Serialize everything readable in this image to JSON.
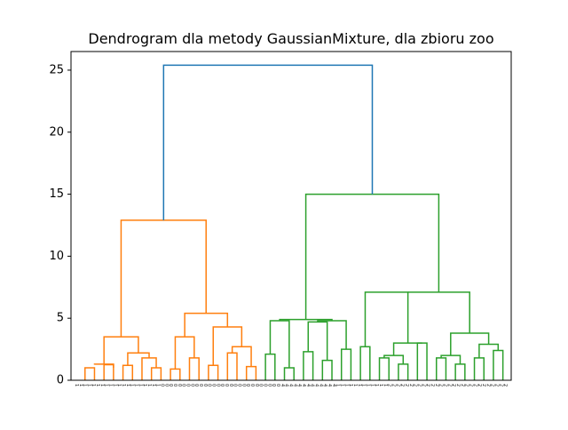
{
  "chart_data": {
    "type": "dendrogram",
    "title": "Dendrogram dla metody GaussianMixture, dla zbioru zoo",
    "xlabel": "",
    "ylabel": "",
    "ylim": [
      0,
      26.5
    ],
    "yticks": [
      0,
      5,
      10,
      15,
      20,
      25
    ],
    "grid": false,
    "leaf_count": 101,
    "leaf_labels": [
      "1",
      "1",
      "1",
      "1",
      "1",
      "1",
      "1",
      "1",
      "1",
      "1",
      "1",
      "1",
      "1",
      "1",
      "1",
      "1",
      "1",
      "1",
      "1",
      "1",
      "0",
      "0",
      "0",
      "0",
      "0",
      "0",
      "0",
      "0",
      "0",
      "0",
      "0",
      "0",
      "0",
      "0",
      "0",
      "0",
      "0",
      "0",
      "0",
      "0",
      "0",
      "0",
      "0",
      "0",
      "0",
      "0",
      "0",
      "0",
      "4",
      "4",
      "4",
      "4",
      "4",
      "4",
      "4",
      "4",
      "4",
      "4",
      "4",
      "4",
      "4",
      "1",
      "1",
      "1",
      "1",
      "1",
      "1",
      "1",
      "1",
      "1",
      "1",
      "1",
      "1",
      "2",
      "2",
      "2",
      "2",
      "2",
      "2",
      "2",
      "2",
      "2",
      "2",
      "2",
      "2",
      "2",
      "2",
      "2",
      "2",
      "2",
      "2",
      "2",
      "2",
      "2",
      "2",
      "2",
      "2",
      "2",
      "2",
      "2",
      "2"
    ],
    "colors": {
      "root": "#1f77b4",
      "cluster_1": "#ff7f0e",
      "cluster_2": "#2ca02c"
    },
    "merges": [
      {
        "x": [
          5.5,
          5.5,
          10.5,
          10.5
        ],
        "y": [
          0,
          1.0,
          1.0,
          0
        ],
        "color": "#ff7f0e"
      },
      {
        "x": [
          15.5,
          15.5,
          20.5,
          20.5
        ],
        "y": [
          0,
          1.25,
          1.25,
          0
        ],
        "color": "#ff7f0e"
      },
      {
        "x": [
          10.5,
          10.5,
          20.5,
          20.5
        ],
        "y": [
          1.25,
          1.3,
          1.3,
          1.0
        ],
        "color": "#ff7f0e"
      },
      {
        "x": [
          25.5,
          25.5,
          30.5,
          30.5
        ],
        "y": [
          0,
          1.2,
          1.2,
          0
        ],
        "color": "#ff7f0e"
      },
      {
        "x": [
          40.5,
          40.5,
          45.5,
          45.5
        ],
        "y": [
          0,
          1.0,
          1.0,
          0
        ],
        "color": "#ff7f0e"
      },
      {
        "x": [
          35.5,
          35.5,
          43.0,
          43.0
        ],
        "y": [
          0,
          1.8,
          1.8,
          1.0
        ],
        "color": "#ff7f0e"
      },
      {
        "x": [
          28.0,
          28.0,
          39.25,
          39.25
        ],
        "y": [
          1.2,
          2.2,
          2.2,
          1.8
        ],
        "color": "#ff7f0e"
      },
      {
        "x": [
          15.5,
          15.5,
          33.6,
          33.6
        ],
        "y": [
          1.3,
          3.5,
          3.5,
          2.2
        ],
        "color": "#ff7f0e"
      },
      {
        "x": [
          50.5,
          50.5,
          55.5,
          55.5
        ],
        "y": [
          0,
          0.9,
          0.9,
          0
        ],
        "color": "#ff7f0e"
      },
      {
        "x": [
          60.5,
          60.5,
          65.5,
          65.5
        ],
        "y": [
          0,
          1.8,
          1.8,
          0
        ],
        "color": "#ff7f0e"
      },
      {
        "x": [
          53.0,
          53.0,
          63.0,
          63.0
        ],
        "y": [
          0.9,
          3.5,
          3.5,
          1.8
        ],
        "color": "#ff7f0e"
      },
      {
        "x": [
          70.5,
          70.5,
          75.5,
          75.5
        ],
        "y": [
          0,
          1.2,
          1.2,
          0
        ],
        "color": "#ff7f0e"
      },
      {
        "x": [
          80.5,
          80.5,
          85.5,
          85.5
        ],
        "y": [
          0,
          2.2,
          2.2,
          0
        ],
        "color": "#ff7f0e"
      },
      {
        "x": [
          90.5,
          90.5,
          95.5,
          95.5
        ],
        "y": [
          0,
          1.1,
          1.1,
          0
        ],
        "color": "#ff7f0e"
      },
      {
        "x": [
          83.0,
          83.0,
          93.0,
          93.0
        ],
        "y": [
          2.2,
          2.7,
          2.7,
          1.1
        ],
        "color": "#ff7f0e"
      },
      {
        "x": [
          73.0,
          73.0,
          88.0,
          88.0
        ],
        "y": [
          1.2,
          4.3,
          4.3,
          2.7
        ],
        "color": "#ff7f0e"
      },
      {
        "x": [
          58.0,
          58.0,
          80.5,
          80.5
        ],
        "y": [
          3.5,
          5.4,
          5.4,
          4.3
        ],
        "color": "#ff7f0e"
      },
      {
        "x": [
          24.5,
          24.5,
          69.25,
          69.25
        ],
        "y": [
          3.5,
          12.9,
          12.9,
          5.4
        ],
        "color": "#ff7f0e"
      },
      {
        "x": [
          100.5,
          100.5,
          105.5,
          105.5
        ],
        "y": [
          0,
          2.1,
          2.1,
          0
        ],
        "color": "#2ca02c"
      },
      {
        "x": [
          110.5,
          110.5,
          115.5,
          115.5
        ],
        "y": [
          0,
          1.0,
          1.0,
          0
        ],
        "color": "#2ca02c"
      },
      {
        "x": [
          103.0,
          103.0,
          113.0,
          113.0
        ],
        "y": [
          2.1,
          4.8,
          4.8,
          1.0
        ],
        "color": "#2ca02c"
      },
      {
        "x": [
          120.5,
          120.5,
          125.5,
          125.5
        ],
        "y": [
          0,
          2.3,
          2.3,
          0
        ],
        "color": "#2ca02c"
      },
      {
        "x": [
          130.5,
          130.5,
          135.5,
          135.5
        ],
        "y": [
          0,
          1.6,
          1.6,
          0
        ],
        "color": "#2ca02c"
      },
      {
        "x": [
          123.0,
          123.0,
          133.0,
          133.0
        ],
        "y": [
          2.3,
          4.7,
          4.7,
          1.6
        ],
        "color": "#2ca02c"
      },
      {
        "x": [
          140.5,
          140.5,
          145.5,
          145.5
        ],
        "y": [
          0,
          2.5,
          2.5,
          0
        ],
        "color": "#2ca02c"
      },
      {
        "x": [
          128.0,
          128.0,
          143.0,
          143.0
        ],
        "y": [
          4.7,
          4.8,
          4.8,
          2.5
        ],
        "color": "#2ca02c"
      },
      {
        "x": [
          108.0,
          108.0,
          135.5,
          135.5
        ],
        "y": [
          4.8,
          4.9,
          4.9,
          4.8
        ],
        "color": "#2ca02c"
      },
      {
        "x": [
          150.5,
          150.5,
          155.5,
          155.5
        ],
        "y": [
          0,
          2.7,
          2.7,
          0
        ],
        "color": "#2ca02c"
      },
      {
        "x": [
          160.5,
          160.5,
          165.5,
          165.5
        ],
        "y": [
          0,
          1.8,
          1.8,
          0
        ],
        "color": "#2ca02c"
      },
      {
        "x": [
          170.5,
          170.5,
          175.5,
          175.5
        ],
        "y": [
          0,
          1.3,
          1.3,
          0
        ],
        "color": "#2ca02c"
      },
      {
        "x": [
          163.0,
          163.0,
          173.0,
          173.0
        ],
        "y": [
          1.8,
          2.0,
          2.0,
          1.3
        ],
        "color": "#2ca02c"
      },
      {
        "x": [
          180.5,
          180.5,
          185.5,
          185.5
        ],
        "y": [
          0,
          3.0,
          3.0,
          0
        ],
        "color": "#2ca02c"
      },
      {
        "x": [
          168.0,
          168.0,
          183.0,
          183.0
        ],
        "y": [
          2.0,
          3.0,
          3.0,
          3.0
        ],
        "color": "#2ca02c"
      },
      {
        "x": [
          153.0,
          153.0,
          175.5,
          175.5
        ],
        "y": [
          2.7,
          7.1,
          7.1,
          3.0
        ],
        "color": "#2ca02c"
      },
      {
        "x": [
          190.5,
          190.5,
          195.5,
          195.5
        ],
        "y": [
          0,
          1.8,
          1.8,
          0
        ],
        "color": "#2ca02c"
      },
      {
        "x": [
          200.5,
          200.5,
          205.5,
          205.5
        ],
        "y": [
          0,
          1.3,
          1.3,
          0
        ],
        "color": "#2ca02c"
      },
      {
        "x": [
          193.0,
          193.0,
          203.0,
          203.0
        ],
        "y": [
          1.8,
          2.0,
          2.0,
          1.3
        ],
        "color": "#2ca02c"
      },
      {
        "x": [
          210.5,
          210.5,
          215.5,
          215.5
        ],
        "y": [
          0,
          1.8,
          1.8,
          0
        ],
        "color": "#2ca02c"
      },
      {
        "x": [
          220.5,
          220.5,
          225.5,
          225.5
        ],
        "y": [
          0,
          2.4,
          2.4,
          0
        ],
        "color": "#2ca02c"
      },
      {
        "x": [
          213.0,
          213.0,
          223.0,
          223.0
        ],
        "y": [
          1.8,
          2.9,
          2.9,
          2.4
        ],
        "color": "#2ca02c"
      },
      {
        "x": [
          198.0,
          198.0,
          218.0,
          218.0
        ],
        "y": [
          2.0,
          3.8,
          3.8,
          2.9
        ],
        "color": "#2ca02c"
      },
      {
        "x": [
          208.0,
          208.0,
          208.0,
          208.0
        ],
        "y": [
          3.8,
          6.3,
          6.3,
          3.8
        ],
        "color": "#2ca02c"
      },
      {
        "x": [
          175.5,
          175.5,
          208.0,
          208.0
        ],
        "y": [
          7.1,
          7.1,
          7.1,
          6.3
        ],
        "color": "#2ca02c"
      },
      {
        "x": [
          121.75,
          121.75,
          191.75,
          191.75
        ],
        "y": [
          4.9,
          15.0,
          15.0,
          7.1
        ],
        "color": "#2ca02c"
      },
      {
        "x": [
          46.875,
          46.875,
          156.75,
          156.75
        ],
        "y": [
          12.9,
          25.4,
          25.4,
          15.0
        ],
        "color": "#1f77b4"
      }
    ]
  }
}
